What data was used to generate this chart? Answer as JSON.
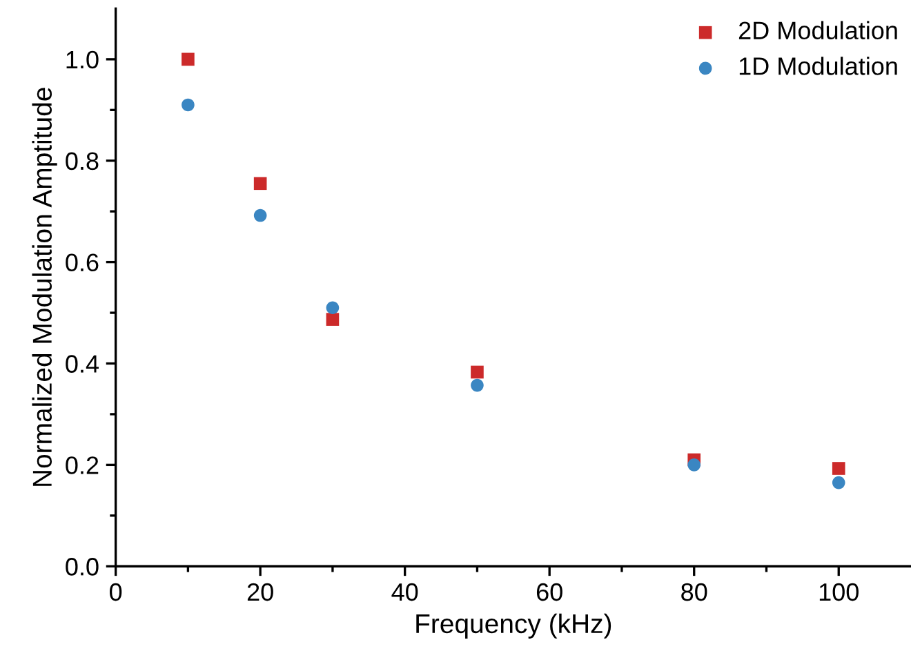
{
  "chart_data": {
    "type": "scatter",
    "xlabel": "Frequency (kHz)",
    "ylabel": "Normalized Modulation Amptitude",
    "xlim": [
      0,
      110
    ],
    "ylim": [
      0,
      1.1
    ],
    "xticks": [
      0,
      {
        "value": 10,
        "label": null
      },
      20,
      {
        "value": 30,
        "label": null
      },
      40,
      {
        "value": 50,
        "label": null
      },
      60,
      {
        "value": 70,
        "label": null
      },
      80,
      {
        "value": 90,
        "label": null
      },
      100
    ],
    "yticks": [
      "0.0",
      {
        "value": 0.1,
        "label": null
      },
      {
        "value": 0.2,
        "label": "0.2"
      },
      {
        "value": 0.3,
        "label": null
      },
      {
        "value": 0.4,
        "label": "0.4"
      },
      {
        "value": 0.5,
        "label": null
      },
      {
        "value": 0.6,
        "label": "0.6"
      },
      {
        "value": 0.7,
        "label": null
      },
      {
        "value": 0.8,
        "label": "0.8"
      },
      {
        "value": 0.9,
        "label": null
      },
      {
        "value": 1.0,
        "label": "1.0"
      }
    ],
    "x": [
      10,
      20,
      30,
      50,
      80,
      100
    ],
    "legend": "top right",
    "grid": false,
    "series": [
      {
        "name": "2D Modulation",
        "color": "#cc2a2a",
        "marker": "square",
        "values": [
          1.0,
          0.755,
          0.487,
          0.383,
          0.21,
          0.193
        ]
      },
      {
        "name": "1D Modulation",
        "color": "#3a86c2",
        "marker": "circle",
        "values": [
          0.91,
          0.692,
          0.51,
          0.357,
          0.2,
          0.165
        ]
      }
    ]
  }
}
